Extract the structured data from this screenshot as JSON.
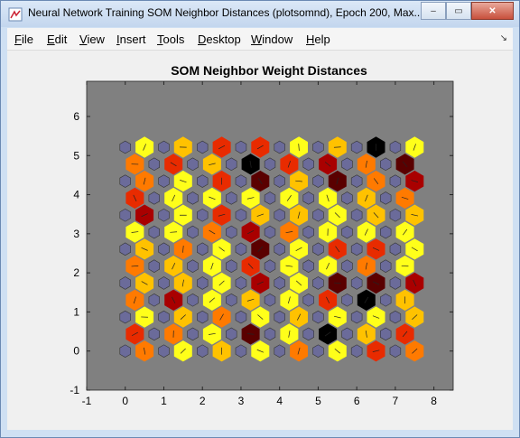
{
  "window": {
    "title": "Neural Network Training SOM Neighbor Distances (plotsomnd), Epoch 200, Max...",
    "minimize_label": "–",
    "maximize_label": "▭",
    "close_label": "✕"
  },
  "menu": {
    "items": [
      {
        "label": "File",
        "u": "F"
      },
      {
        "label": "Edit",
        "u": "E"
      },
      {
        "label": "View",
        "u": "V"
      },
      {
        "label": "Insert",
        "u": "I"
      },
      {
        "label": "Tools",
        "u": "T"
      },
      {
        "label": "Desktop",
        "u": "D"
      },
      {
        "label": "Window",
        "u": "W"
      },
      {
        "label": "Help",
        "u": "H"
      }
    ]
  },
  "chart_data": {
    "type": "heatmap",
    "title": "SOM Neighbor Weight Distances",
    "xlabel": "",
    "ylabel": "",
    "xlim": [
      -1,
      8.5
    ],
    "ylim": [
      -1,
      6.9
    ],
    "x_ticks": [
      "-1",
      "0",
      "1",
      "2",
      "3",
      "4",
      "5",
      "6",
      "7",
      "8"
    ],
    "y_ticks": [
      "-1",
      "0",
      "1",
      "2",
      "3",
      "4",
      "5",
      "6"
    ],
    "neuron_color": "#6b6b9a",
    "background_color": "#808080",
    "colormap": [
      "#ffff1a",
      "#ffc200",
      "#ff7a00",
      "#e82b00",
      "#a90000",
      "#5a0000",
      "#000000"
    ],
    "grid_cols": 10,
    "grid_rows": 8
  }
}
